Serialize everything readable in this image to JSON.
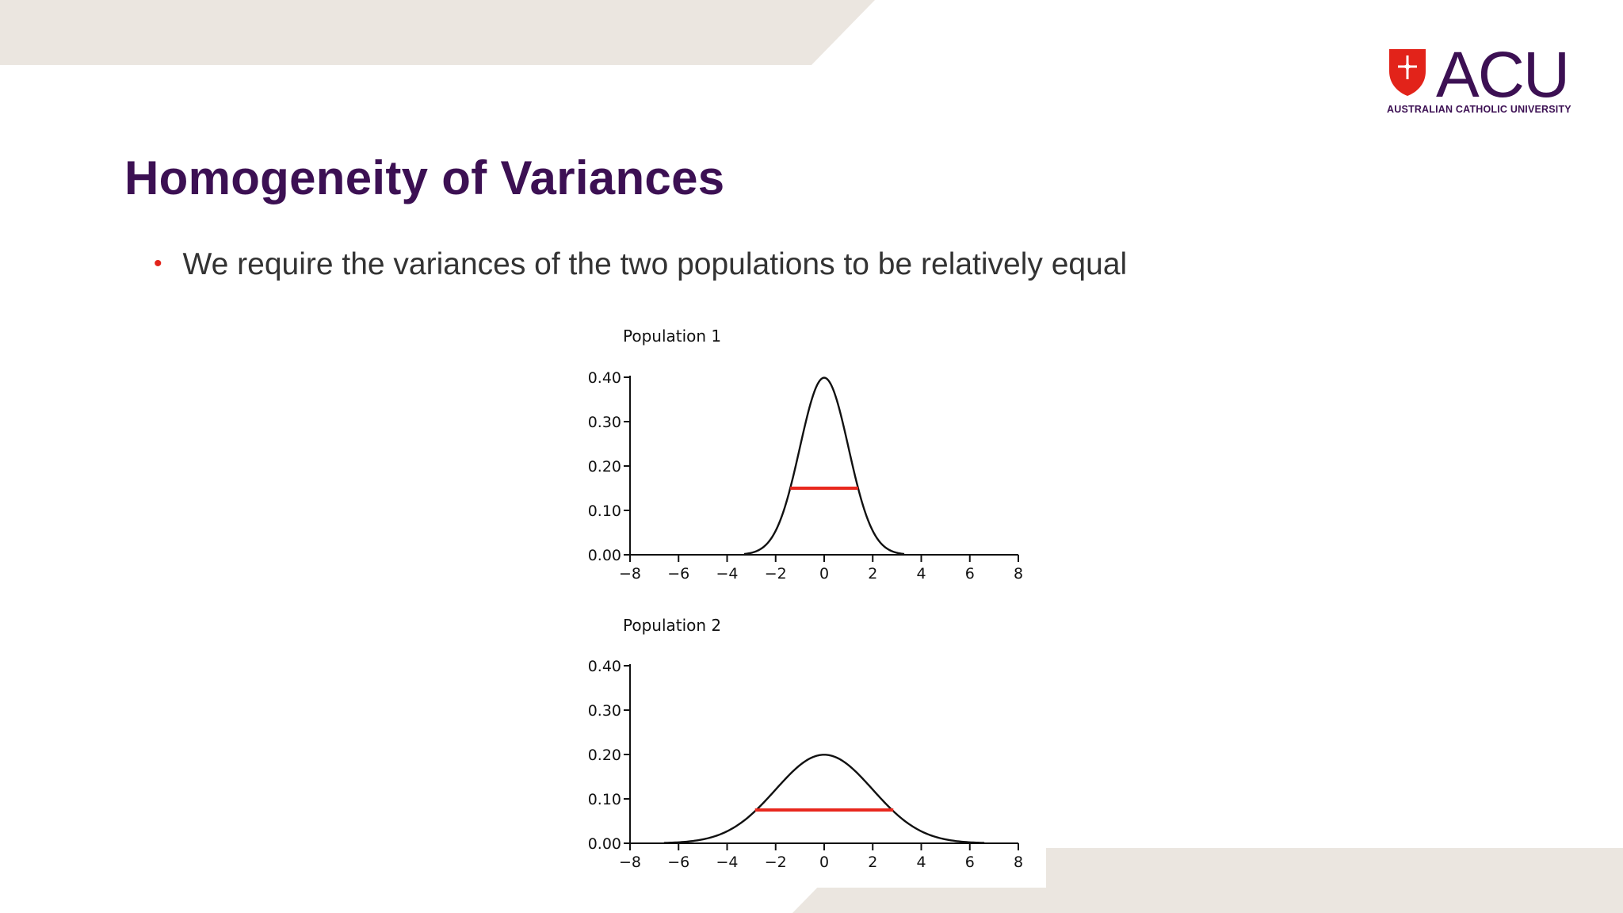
{
  "slide": {
    "title": "Homogeneity of Variances",
    "bullet": "We require the variances of the two populations to be relatively equal",
    "colors": {
      "title": "#3c1053",
      "bullet_marker": "#e2231a",
      "band": "#ebe6e0"
    }
  },
  "logo": {
    "word": "ACU",
    "subtitle": "AUSTRALIAN CATHOLIC UNIVERSITY",
    "shield_color": "#e2231a"
  },
  "chart_data": [
    {
      "type": "line",
      "title": "Population 1",
      "distribution": "normal",
      "mean": 0,
      "sd": 1,
      "xlim": [
        -8,
        8
      ],
      "ylim": [
        0,
        0.4
      ],
      "x_ticks": [
        "−8",
        "−6",
        "−4",
        "−2",
        "0",
        "2",
        "4",
        "6",
        "8"
      ],
      "y_ticks": [
        "0.00",
        "0.10",
        "0.20",
        "0.30",
        "0.40"
      ],
      "spread_marker": {
        "x_from": -1.4,
        "x_to": 1.4,
        "y": 0.15,
        "color": "#e8281e"
      },
      "xlabel": "",
      "ylabel": ""
    },
    {
      "type": "line",
      "title": "Population 2",
      "distribution": "normal",
      "mean": 0,
      "sd": 2,
      "xlim": [
        -8,
        8
      ],
      "ylim": [
        0,
        0.4
      ],
      "x_ticks": [
        "−8",
        "−6",
        "−4",
        "−2",
        "0",
        "2",
        "4",
        "6",
        "8"
      ],
      "y_ticks": [
        "0.00",
        "0.10",
        "0.20",
        "0.30",
        "0.40"
      ],
      "spread_marker": {
        "x_from": -2.85,
        "x_to": 2.85,
        "y": 0.075,
        "color": "#e8281e"
      },
      "xlabel": "",
      "ylabel": ""
    }
  ]
}
